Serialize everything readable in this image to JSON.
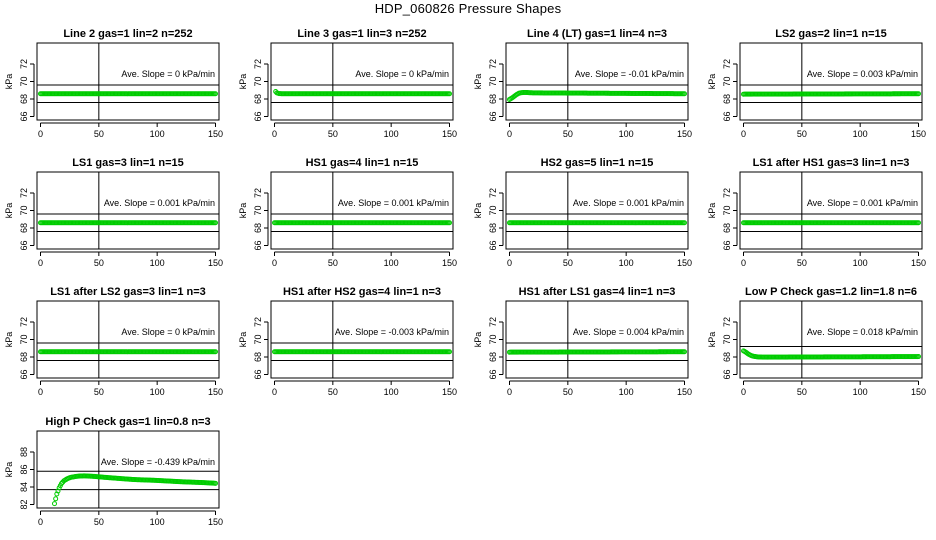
{
  "title": "HDP_060826  Pressure Shapes",
  "colors": {
    "series": "#00cc00",
    "axes": "#000000"
  },
  "chart_data": [
    {
      "type": "scatter",
      "title": "Line 2 gas=1 lin=2 n=252",
      "ylabel": "kPa",
      "xlim": [
        0,
        150
      ],
      "ylim": [
        66,
        74
      ],
      "xticks": [
        0,
        50,
        100,
        150
      ],
      "yticks": [
        66,
        68,
        70,
        72
      ],
      "hlines": [
        67.6,
        69.6
      ],
      "vline": 50,
      "annotation": "Ave. Slope =  0  kPa/min",
      "series": [
        {
          "x": [
            0,
            150
          ],
          "y": [
            68.6,
            68.6
          ]
        }
      ]
    },
    {
      "type": "scatter",
      "title": "Line 3 gas=1 lin=3 n=252",
      "ylabel": "kPa",
      "xlim": [
        0,
        150
      ],
      "ylim": [
        66,
        74
      ],
      "xticks": [
        0,
        50,
        100,
        150
      ],
      "yticks": [
        66,
        68,
        70,
        72
      ],
      "hlines": [
        67.6,
        69.6
      ],
      "vline": 50,
      "annotation": "Ave. Slope =  0  kPa/min",
      "series": [
        {
          "x": [
            1,
            2,
            4,
            6,
            150
          ],
          "y": [
            68.85,
            68.7,
            68.62,
            68.6,
            68.6
          ]
        }
      ]
    },
    {
      "type": "scatter",
      "title": "Line 4 (LT) gas=1 lin=4 n=3",
      "ylabel": "kPa",
      "xlim": [
        0,
        150
      ],
      "ylim": [
        66,
        74
      ],
      "xticks": [
        0,
        50,
        100,
        150
      ],
      "yticks": [
        66,
        68,
        70,
        72
      ],
      "hlines": [
        67.6,
        69.6
      ],
      "vline": 50,
      "annotation": "Ave. Slope =  -0.01  kPa/min",
      "series": [
        {
          "x": [
            0,
            2,
            4,
            6,
            8,
            10,
            13,
            20,
            150
          ],
          "y": [
            67.95,
            68.1,
            68.3,
            68.5,
            68.65,
            68.72,
            68.75,
            68.7,
            68.6
          ]
        }
      ]
    },
    {
      "type": "scatter",
      "title": "LS2 gas=2 lin=1 n=15",
      "ylabel": "kPa",
      "xlim": [
        0,
        150
      ],
      "ylim": [
        66,
        74
      ],
      "xticks": [
        0,
        50,
        100,
        150
      ],
      "yticks": [
        66,
        68,
        70,
        72
      ],
      "hlines": [
        67.6,
        69.6
      ],
      "vline": 50,
      "annotation": "Ave. Slope =  0.003  kPa/min",
      "series": [
        {
          "x": [
            0,
            150
          ],
          "y": [
            68.55,
            68.6
          ]
        }
      ]
    },
    {
      "type": "scatter",
      "title": "LS1 gas=3 lin=1 n=15",
      "ylabel": "kPa",
      "xlim": [
        0,
        150
      ],
      "ylim": [
        66,
        74
      ],
      "xticks": [
        0,
        50,
        100,
        150
      ],
      "yticks": [
        66,
        68,
        70,
        72
      ],
      "hlines": [
        67.6,
        69.6
      ],
      "vline": 50,
      "annotation": "Ave. Slope =  0.001  kPa/min",
      "series": [
        {
          "x": [
            0,
            150
          ],
          "y": [
            68.6,
            68.6
          ]
        }
      ]
    },
    {
      "type": "scatter",
      "title": "HS1 gas=4 lin=1 n=15",
      "ylabel": "kPa",
      "xlim": [
        0,
        150
      ],
      "ylim": [
        66,
        74
      ],
      "xticks": [
        0,
        50,
        100,
        150
      ],
      "yticks": [
        66,
        68,
        70,
        72
      ],
      "hlines": [
        67.6,
        69.6
      ],
      "vline": 50,
      "annotation": "Ave. Slope =  0.001  kPa/min",
      "series": [
        {
          "x": [
            0,
            150
          ],
          "y": [
            68.6,
            68.6
          ]
        }
      ]
    },
    {
      "type": "scatter",
      "title": "HS2 gas=5 lin=1 n=15",
      "ylabel": "kPa",
      "xlim": [
        0,
        150
      ],
      "ylim": [
        66,
        74
      ],
      "xticks": [
        0,
        50,
        100,
        150
      ],
      "yticks": [
        66,
        68,
        70,
        72
      ],
      "hlines": [
        67.6,
        69.6
      ],
      "vline": 50,
      "annotation": "Ave. Slope =  0.001  kPa/min",
      "series": [
        {
          "x": [
            0,
            150
          ],
          "y": [
            68.6,
            68.6
          ]
        }
      ]
    },
    {
      "type": "scatter",
      "title": "LS1 after HS1 gas=3 lin=1 n=3",
      "ylabel": "kPa",
      "xlim": [
        0,
        150
      ],
      "ylim": [
        66,
        74
      ],
      "xticks": [
        0,
        50,
        100,
        150
      ],
      "yticks": [
        66,
        68,
        70,
        72
      ],
      "hlines": [
        67.6,
        69.6
      ],
      "vline": 50,
      "annotation": "Ave. Slope =  0.001  kPa/min",
      "series": [
        {
          "x": [
            0,
            150
          ],
          "y": [
            68.6,
            68.6
          ]
        }
      ]
    },
    {
      "type": "scatter",
      "title": "LS1 after LS2 gas=3 lin=1 n=3",
      "ylabel": "kPa",
      "xlim": [
        0,
        150
      ],
      "ylim": [
        66,
        74
      ],
      "xticks": [
        0,
        50,
        100,
        150
      ],
      "yticks": [
        66,
        68,
        70,
        72
      ],
      "hlines": [
        67.6,
        69.6
      ],
      "vline": 50,
      "annotation": "Ave. Slope =  0  kPa/min",
      "series": [
        {
          "x": [
            0,
            150
          ],
          "y": [
            68.6,
            68.6
          ]
        }
      ]
    },
    {
      "type": "scatter",
      "title": "HS1 after HS2 gas=4 lin=1 n=3",
      "ylabel": "kPa",
      "xlim": [
        0,
        150
      ],
      "ylim": [
        66,
        74
      ],
      "xticks": [
        0,
        50,
        100,
        150
      ],
      "yticks": [
        66,
        68,
        70,
        72
      ],
      "hlines": [
        67.6,
        69.6
      ],
      "vline": 50,
      "annotation": "Ave. Slope =  -0.003  kPa/min",
      "series": [
        {
          "x": [
            0,
            150
          ],
          "y": [
            68.6,
            68.6
          ]
        }
      ]
    },
    {
      "type": "scatter",
      "title": "HS1 after LS1 gas=4 lin=1 n=3",
      "ylabel": "kPa",
      "xlim": [
        0,
        150
      ],
      "ylim": [
        66,
        74
      ],
      "xticks": [
        0,
        50,
        100,
        150
      ],
      "yticks": [
        66,
        68,
        70,
        72
      ],
      "hlines": [
        67.6,
        69.6
      ],
      "vline": 50,
      "annotation": "Ave. Slope =  0.004  kPa/min",
      "series": [
        {
          "x": [
            0,
            150
          ],
          "y": [
            68.55,
            68.6
          ]
        }
      ]
    },
    {
      "type": "scatter",
      "title": "Low P Check gas=1.2 lin=1.8 n=6",
      "ylabel": "kPa",
      "xlim": [
        0,
        150
      ],
      "ylim": [
        66,
        74
      ],
      "xticks": [
        0,
        50,
        100,
        150
      ],
      "yticks": [
        66,
        68,
        70,
        72
      ],
      "hlines": [
        67.2,
        69.2
      ],
      "vline": 50,
      "annotation": "Ave. Slope =  0.018  kPa/min",
      "series": [
        {
          "x": [
            0,
            2,
            4,
            6,
            8,
            10,
            13,
            20,
            50,
            100,
            150
          ],
          "y": [
            68.7,
            68.55,
            68.35,
            68.2,
            68.1,
            68.05,
            68.0,
            67.98,
            68.0,
            68.02,
            68.05
          ]
        }
      ]
    },
    {
      "type": "scatter",
      "title": "High P Check gas=1 lin=0.8 n=3",
      "ylabel": "kPa",
      "xlim": [
        0,
        150
      ],
      "ylim": [
        82,
        90
      ],
      "xticks": [
        0,
        50,
        100,
        150
      ],
      "yticks": [
        82,
        84,
        86,
        88
      ],
      "hlines": [
        83.7,
        85.8
      ],
      "vline": 50,
      "annotation": "Ave. Slope =  -0.439  kPa/min",
      "series": [
        {
          "x": [
            12,
            14,
            16,
            18,
            20,
            23,
            26,
            30,
            34,
            38,
            45,
            60,
            80,
            100,
            120,
            140,
            150
          ],
          "y": [
            82.1,
            83.2,
            83.9,
            84.4,
            84.7,
            84.95,
            85.1,
            85.2,
            85.25,
            85.27,
            85.22,
            85.05,
            84.85,
            84.75,
            84.6,
            84.5,
            84.42
          ]
        }
      ]
    }
  ]
}
